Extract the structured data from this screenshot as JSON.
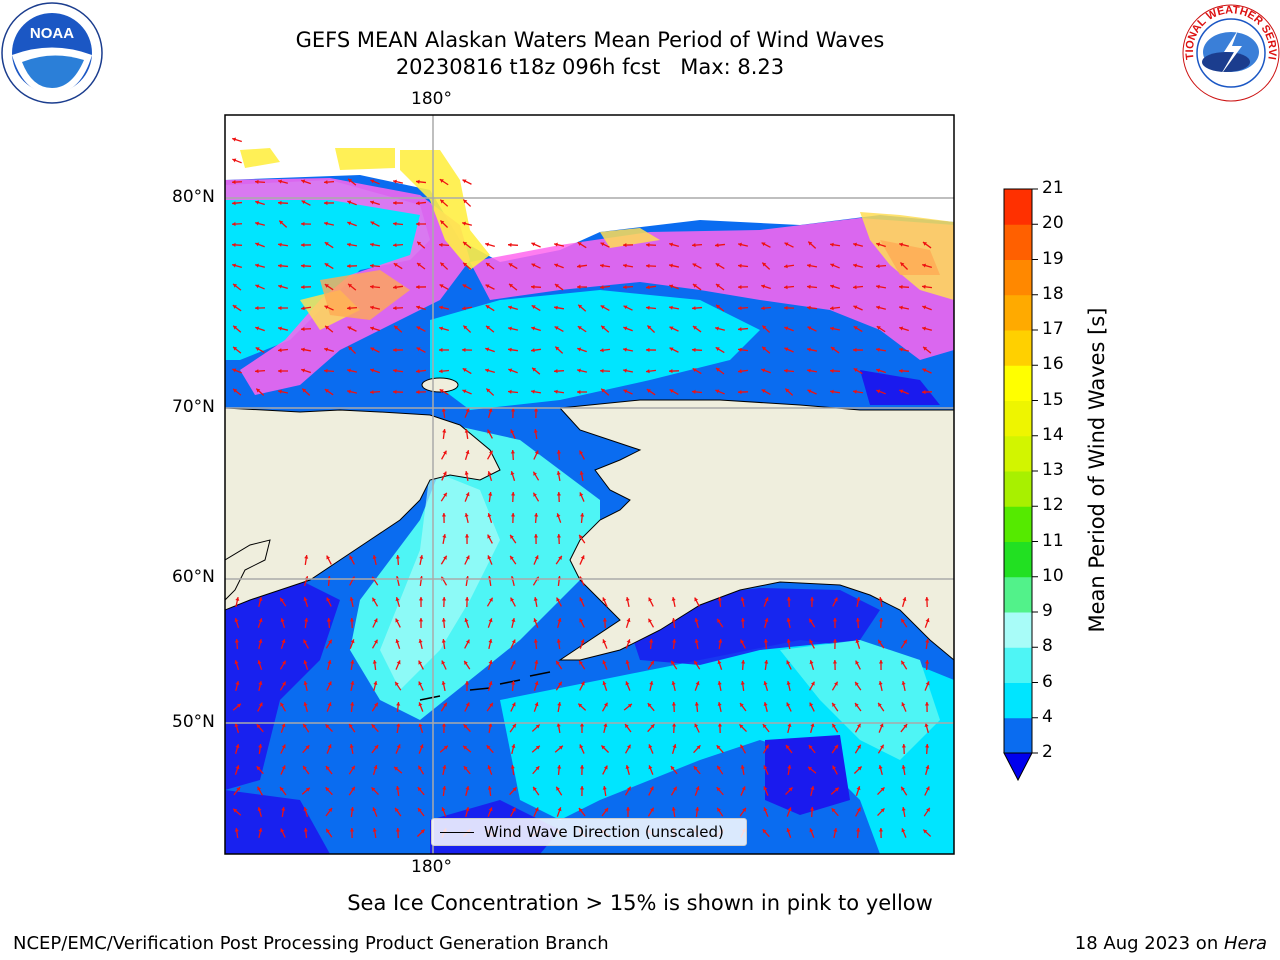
{
  "title_line1": "GEFS MEAN Alaskan Waters Mean Period of Wind Waves",
  "title_line2": "20230816 t18z 096h fcst   Max: 8.23",
  "lon_label_top": "180°",
  "lon_label_bottom": "180°",
  "lat_labels": [
    "80°N",
    "70°N",
    "60°N",
    "50°N"
  ],
  "legend_text": "Wind Wave Direction (unscaled)",
  "caption": "Sea Ice Concentration > 15% is shown in pink to yellow",
  "footer_left": "NCEP/EMC/Verification Post Processing Product Generation Branch",
  "footer_date": "18 Aug 2023 on ",
  "footer_machine": "Hera",
  "colorbar": {
    "label": "Mean Period of Wind Waves [s]",
    "ticks": [
      "2",
      "4",
      "6",
      "8",
      "9",
      "10",
      "11",
      "12",
      "13",
      "14",
      "15",
      "16",
      "17",
      "18",
      "19",
      "20",
      "21"
    ],
    "colors": [
      "#0a6cf0",
      "#00e5ff",
      "#4ef5f5",
      "#a8fcf8",
      "#52f28a",
      "#22e022",
      "#55ea00",
      "#a8f000",
      "#d2f500",
      "#eef500",
      "#ffff00",
      "#ffd000",
      "#ffaa00",
      "#ff8800",
      "#ff6000",
      "#ff3000",
      "#ff0000"
    ],
    "extend_color": "#0000ee"
  },
  "logos": {
    "noaa_text": "NOAA",
    "nws_text": "NATIONAL WEATHER SERVICE"
  },
  "map_colors": {
    "land": "#efeedd",
    "deep_blue": "#1a1aee",
    "mid_blue": "#0a6cf0",
    "cyan": "#00e5ff",
    "light_cyan": "#4ef5f5",
    "ice_pink": "#ff66ee",
    "ice_orange": "#ffaa55",
    "ice_yellow": "#ffff44",
    "arrow": "#ee1111"
  }
}
